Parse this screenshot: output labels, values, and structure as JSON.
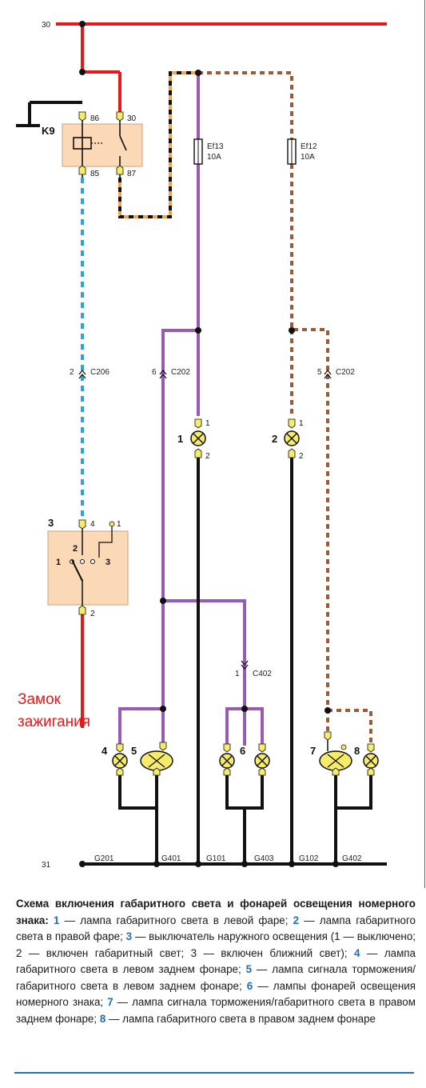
{
  "bus": {
    "plus_label": "30",
    "ground_label": "31"
  },
  "relay": {
    "name": "K9",
    "pin_86": "86",
    "pin_30": "30",
    "pin_85": "85",
    "pin_87": "87"
  },
  "fuses": [
    {
      "name": "Ef13",
      "rating": "10A"
    },
    {
      "name": "Ef12",
      "rating": "10A"
    }
  ],
  "connectors": [
    {
      "pin": "2",
      "name": "C206"
    },
    {
      "pin": "6",
      "name": "C202"
    },
    {
      "pin": "5",
      "name": "C202"
    },
    {
      "pin": "1",
      "name": "C402"
    }
  ],
  "lamps": {
    "lamp1": {
      "num": "1",
      "pin_top": "1",
      "pin_bottom": "2"
    },
    "lamp2": {
      "num": "2",
      "pin_top": "1",
      "pin_bottom": "2"
    },
    "lamp4": {
      "num": "4"
    },
    "lamp5": {
      "num": "5"
    },
    "lamp6": {
      "num": "6"
    },
    "lamp7": {
      "num": "7"
    },
    "lamp8": {
      "num": "8"
    }
  },
  "switch": {
    "num": "3",
    "pin_4": "4",
    "pin_1": "1",
    "pin_2": "2",
    "pos_1": "1",
    "pos_2": "2",
    "pos_3": "3"
  },
  "ignition_label_1": "Замок",
  "ignition_label_2": "зажигания",
  "grounds": [
    "G201",
    "G401",
    "G101",
    "G403",
    "G102",
    "G402"
  ],
  "colors": {
    "red": "#e3191c",
    "purple": "#9b59b6",
    "blue": "#2aa6d6",
    "brown": "#9a5b36",
    "orange": "#f2a54a",
    "black": "#111111",
    "yellow": "#f7ec6a",
    "box": "#fbd9b6",
    "accent": "#1f6fb5"
  },
  "caption": {
    "title": "Схема включения габаритного света и фонарей освещения номерного знака:",
    "items": [
      {
        "key": "1",
        "text": " — лампа габаритного света в левой фаре;"
      },
      {
        "key": "2",
        "text": " — лампа габаритного света в правой фаре;"
      },
      {
        "key": "3",
        "text": " — выключатель наружного освещения (1 — выключено; 2 — включен габаритный свет; 3 — включен ближний свет);"
      },
      {
        "key": "4",
        "text": " — лампа габаритного света в левом заднем фонаре;"
      },
      {
        "key": "5",
        "text": " — лампа сигнала торможения/габаритного света в левом заднем фонаре;"
      },
      {
        "key": "6",
        "text": " — лампы фонарей освещения номерного знака;"
      },
      {
        "key": "7",
        "text": " — лампа сигнала торможения/габаритного света в правом заднем фонаре;"
      },
      {
        "key": "8",
        "text": " — лампа габаритного света в правом заднем фонаре"
      }
    ]
  }
}
